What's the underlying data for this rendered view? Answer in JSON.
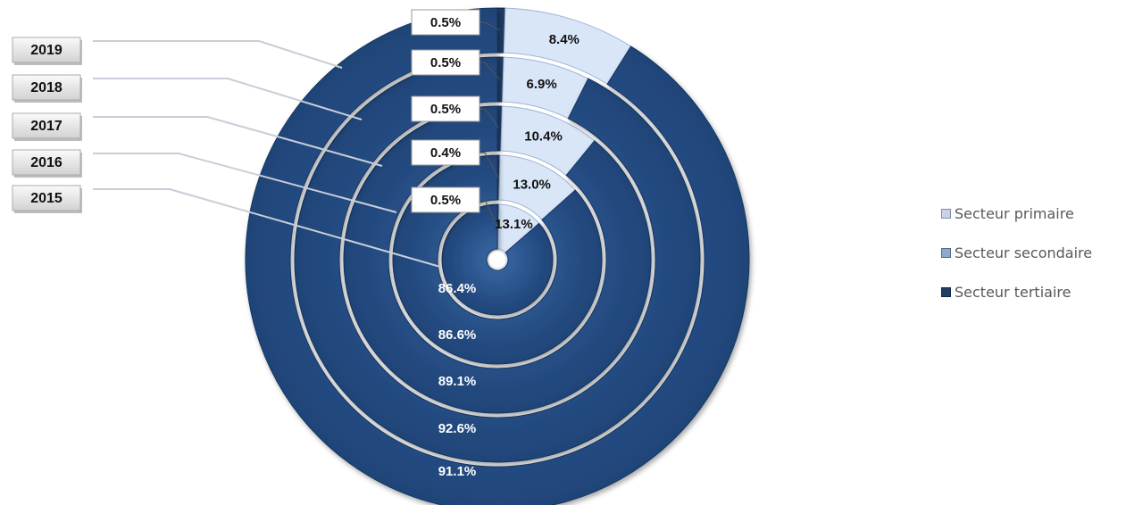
{
  "colors": {
    "primaire": "#1f3e66",
    "secondaire": "#d9e6f8",
    "tertiaire": "#2b5692"
  },
  "chart_data": {
    "type": "doughnut",
    "rings": [
      "2015",
      "2016",
      "2017",
      "2018",
      "2019"
    ],
    "series": [
      {
        "name": "Secteur primaire",
        "values": [
          0.5,
          0.4,
          0.5,
          0.5,
          0.5
        ]
      },
      {
        "name": "Secteur secondaire",
        "values": [
          13.1,
          13.0,
          10.4,
          6.9,
          8.4
        ]
      },
      {
        "name": "Secteur tertiaire",
        "values": [
          86.4,
          86.6,
          89.1,
          92.6,
          91.1
        ]
      }
    ],
    "labels": {
      "primaire": [
        "0.5%",
        "0.4%",
        "0.5%",
        "0.5%",
        "0.5%"
      ],
      "secondaire": [
        "13.1%",
        "13.0%",
        "10.4%",
        "6.9%",
        "8.4%"
      ],
      "tertiaire": [
        "86.4%",
        "86.6%",
        "89.1%",
        "92.6%",
        "91.1%"
      ]
    },
    "legend": [
      "Secteur primaire",
      "Secteur secondaire",
      "Secteur tertiaire"
    ],
    "legend_position": "right"
  }
}
